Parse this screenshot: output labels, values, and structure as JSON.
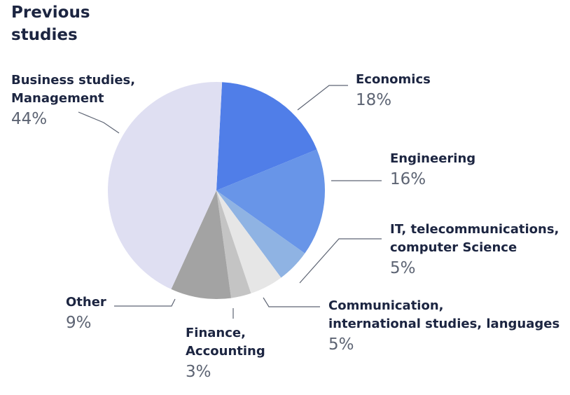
{
  "title": "Previous\nstudies",
  "chart_data": {
    "type": "pie",
    "title": "Previous studies",
    "slices": [
      {
        "label": "Economics",
        "value_label": "18%",
        "value": 18,
        "color": "#507ee8"
      },
      {
        "label": "Engineering",
        "value_label": "16%",
        "value": 16,
        "color": "#6895e8"
      },
      {
        "label": "IT, telecommunications, computer Science",
        "value_label": "5%",
        "value": 5,
        "color": "#8fb3e3"
      },
      {
        "label": "Communication, international studies, languages",
        "value_label": "5%",
        "value": 5,
        "color": "#e6e6e6"
      },
      {
        "label": "Finance, Accounting",
        "value_label": "3%",
        "value": 3,
        "color": "#c4c4c4"
      },
      {
        "label": "Other",
        "value_label": "9%",
        "value": 9,
        "color": "#a3a3a3"
      },
      {
        "label": "Business studies, Management",
        "value_label": "44%",
        "value": 44,
        "color": "#dfdff2"
      }
    ],
    "legend": "callout labels around pie"
  },
  "labels": {
    "economics": {
      "name": "Economics",
      "pct": "18%"
    },
    "engineering": {
      "name": "Engineering",
      "pct": "16%"
    },
    "it": {
      "name": "IT, telecommunications,\ncomputer Science",
      "pct": "5%"
    },
    "communication": {
      "name": "Communication,\ninternational studies, languages",
      "pct": "5%"
    },
    "finance": {
      "name": "Finance,\nAccounting",
      "pct": "3%"
    },
    "other": {
      "name": "Other",
      "pct": "9%"
    },
    "business": {
      "name": "Business studies,\nManagement",
      "pct": "44%"
    }
  }
}
